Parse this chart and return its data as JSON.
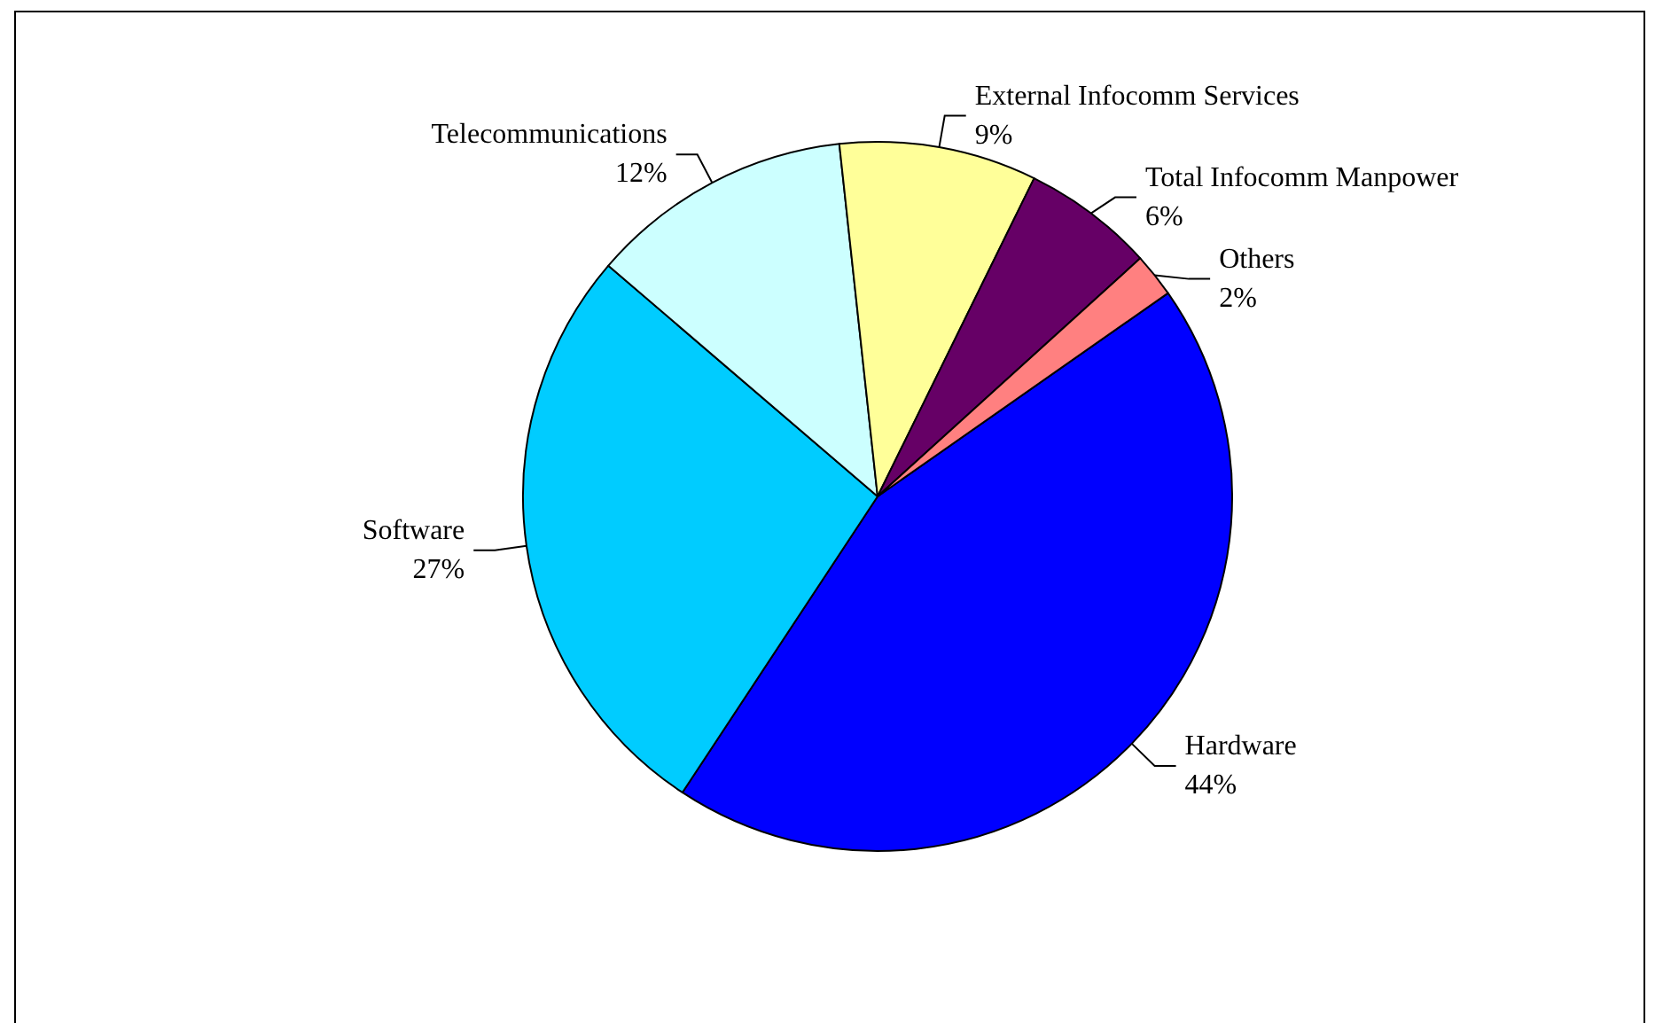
{
  "chart_data": {
    "type": "pie",
    "categories": [
      "Hardware",
      "Software",
      "Telecommunications",
      "External Infocomm Services",
      "Total Infocomm Manpower",
      "Others"
    ],
    "values": [
      44,
      27,
      12,
      9,
      6,
      2
    ],
    "colors": [
      "#0000ff",
      "#00ccff",
      "#ccffff",
      "#ffff99",
      "#660066",
      "#ff8080"
    ],
    "value_labels": [
      "44%",
      "27%",
      "12%",
      "9%",
      "6%",
      "2%"
    ],
    "legend": false
  }
}
